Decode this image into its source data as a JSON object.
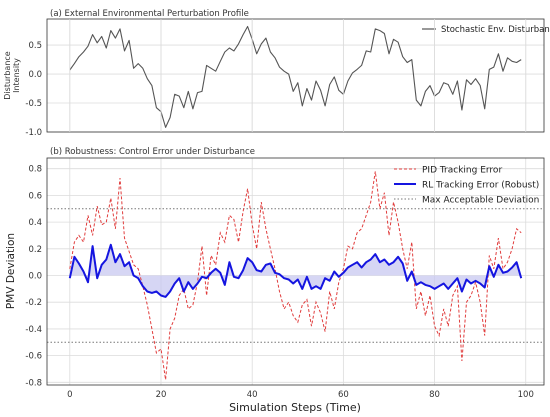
{
  "chart_data": [
    {
      "type": "line",
      "title": "(a) External Environmental Perturbation Profile",
      "ylabel": "Disturbance\nIntensity",
      "ylim": [
        -1.0,
        0.95
      ],
      "yticks": [
        "-1.0",
        "-0.5",
        "0.0",
        "0.5"
      ],
      "ytick_values": [
        -1.0,
        -0.5,
        0.0,
        0.5
      ],
      "xlim": [
        -5,
        104
      ],
      "grid": true,
      "legend_position": "top-right",
      "series": [
        {
          "name": "Stochastic Env. Disturbance",
          "color": "#555555",
          "style": "solid",
          "x": [
            0,
            1,
            2,
            3,
            4,
            5,
            6,
            7,
            8,
            9,
            10,
            11,
            12,
            13,
            14,
            15,
            16,
            17,
            18,
            19,
            20,
            21,
            22,
            23,
            24,
            25,
            26,
            27,
            28,
            29,
            30,
            31,
            32,
            33,
            34,
            35,
            36,
            37,
            38,
            39,
            40,
            41,
            42,
            43,
            44,
            45,
            46,
            47,
            48,
            49,
            50,
            51,
            52,
            53,
            54,
            55,
            56,
            57,
            58,
            59,
            60,
            61,
            62,
            63,
            64,
            65,
            66,
            67,
            68,
            69,
            70,
            71,
            72,
            73,
            74,
            75,
            76,
            77,
            78,
            79,
            80,
            81,
            82,
            83,
            84,
            85,
            86,
            87,
            88,
            89,
            90,
            91,
            92,
            93,
            94,
            95,
            96,
            97,
            98,
            99
          ],
          "values": [
            0.07,
            0.18,
            0.3,
            0.38,
            0.48,
            0.68,
            0.54,
            0.65,
            0.45,
            0.75,
            0.62,
            0.78,
            0.4,
            0.58,
            0.1,
            0.18,
            0.1,
            -0.08,
            -0.2,
            -0.58,
            -0.65,
            -0.92,
            -0.75,
            -0.35,
            -0.38,
            -0.58,
            -0.3,
            -0.6,
            -0.32,
            -0.3,
            0.15,
            0.1,
            0.05,
            0.22,
            0.38,
            0.45,
            0.4,
            0.52,
            0.68,
            0.82,
            0.6,
            0.35,
            0.52,
            0.62,
            0.38,
            0.28,
            0.12,
            0.05,
            0.0,
            -0.3,
            -0.15,
            -0.55,
            -0.25,
            -0.45,
            -0.12,
            -0.28,
            -0.55,
            -0.18,
            -0.05,
            -0.28,
            -0.35,
            -0.12,
            0.02,
            0.08,
            0.15,
            0.4,
            0.38,
            0.78,
            0.75,
            0.7,
            0.35,
            0.6,
            0.55,
            0.3,
            0.2,
            0.25,
            -0.45,
            -0.55,
            -0.3,
            -0.2,
            -0.38,
            -0.32,
            -0.15,
            -0.18,
            -0.35,
            -0.12,
            -0.62,
            -0.1,
            -0.18,
            -0.08,
            -0.2,
            -0.6,
            0.08,
            0.12,
            0.35,
            0.05,
            0.28,
            0.22,
            0.2,
            0.25
          ]
        }
      ]
    },
    {
      "type": "line",
      "title": "(b) Robustness: Control Error under Disturbance",
      "xlabel": "Simulation Steps (Time)",
      "ylabel": "PMV Deviation",
      "ylim": [
        -0.82,
        0.88
      ],
      "yticks": [
        "-0.8",
        "-0.6",
        "-0.4",
        "-0.2",
        "0.0",
        "0.2",
        "0.4",
        "0.6",
        "0.8"
      ],
      "ytick_values": [
        -0.8,
        -0.6,
        -0.4,
        -0.2,
        0.0,
        0.2,
        0.4,
        0.6,
        0.8
      ],
      "xlim": [
        -5,
        104
      ],
      "xticks": [
        "0",
        "20",
        "40",
        "60",
        "80",
        "100"
      ],
      "xtick_values": [
        0,
        20,
        40,
        60,
        80,
        100
      ],
      "grid": true,
      "legend_position": "top-right",
      "thresholds": {
        "name": "Max Acceptable Deviation",
        "values": [
          0.5,
          -0.5
        ],
        "color": "#777777",
        "style": "dotted"
      },
      "fill_color": "#c8c8f0",
      "series": [
        {
          "name": "PID Tracking Error",
          "color": "#e03c3c",
          "style": "dashed",
          "x": [
            0,
            1,
            2,
            3,
            4,
            5,
            6,
            7,
            8,
            9,
            10,
            11,
            12,
            13,
            14,
            15,
            16,
            17,
            18,
            19,
            20,
            21,
            22,
            23,
            24,
            25,
            26,
            27,
            28,
            29,
            30,
            31,
            32,
            33,
            34,
            35,
            36,
            37,
            38,
            39,
            40,
            41,
            42,
            43,
            44,
            45,
            46,
            47,
            48,
            49,
            50,
            51,
            52,
            53,
            54,
            55,
            56,
            57,
            58,
            59,
            60,
            61,
            62,
            63,
            64,
            65,
            66,
            67,
            68,
            69,
            70,
            71,
            72,
            73,
            74,
            75,
            76,
            77,
            78,
            79,
            80,
            81,
            82,
            83,
            84,
            85,
            86,
            87,
            88,
            89,
            90,
            91,
            92,
            93,
            94,
            95,
            96,
            97,
            98,
            99
          ],
          "values": [
            0.05,
            0.25,
            0.3,
            0.25,
            0.45,
            0.3,
            0.52,
            0.38,
            0.4,
            0.58,
            0.35,
            0.73,
            0.28,
            0.18,
            0.08,
            0.05,
            -0.08,
            -0.22,
            -0.4,
            -0.58,
            -0.55,
            -0.78,
            -0.4,
            -0.32,
            -0.15,
            -0.1,
            -0.25,
            -0.22,
            -0.05,
            0.22,
            -0.15,
            0.15,
            0.08,
            0.32,
            0.25,
            0.45,
            0.42,
            0.25,
            0.48,
            0.65,
            0.38,
            0.2,
            0.55,
            0.35,
            0.2,
            0.05,
            -0.12,
            -0.25,
            -0.2,
            -0.3,
            -0.35,
            -0.22,
            -0.18,
            -0.38,
            -0.2,
            -0.28,
            -0.42,
            -0.12,
            -0.25,
            -0.05,
            0.05,
            0.22,
            0.2,
            0.32,
            0.35,
            0.45,
            0.55,
            0.78,
            0.5,
            0.62,
            0.3,
            0.55,
            0.4,
            0.2,
            0.05,
            0.25,
            -0.25,
            -0.12,
            -0.3,
            -0.15,
            -0.38,
            -0.45,
            -0.25,
            -0.38,
            -0.15,
            -0.08,
            -0.64,
            -0.2,
            -0.15,
            -0.05,
            -0.2,
            -0.45,
            0.15,
            0.05,
            0.28,
            0.05,
            0.1,
            0.2,
            0.35,
            0.32
          ]
        },
        {
          "name": "RL Tracking Error (Robust)",
          "color": "#1515e0",
          "style": "solid",
          "x": [
            0,
            1,
            2,
            3,
            4,
            5,
            6,
            7,
            8,
            9,
            10,
            11,
            12,
            13,
            14,
            15,
            16,
            17,
            18,
            19,
            20,
            21,
            22,
            23,
            24,
            25,
            26,
            27,
            28,
            29,
            30,
            31,
            32,
            33,
            34,
            35,
            36,
            37,
            38,
            39,
            40,
            41,
            42,
            43,
            44,
            45,
            46,
            47,
            48,
            49,
            50,
            51,
            52,
            53,
            54,
            55,
            56,
            57,
            58,
            59,
            60,
            61,
            62,
            63,
            64,
            65,
            66,
            67,
            68,
            69,
            70,
            71,
            72,
            73,
            74,
            75,
            76,
            77,
            78,
            79,
            80,
            81,
            82,
            83,
            84,
            85,
            86,
            87,
            88,
            89,
            90,
            91,
            92,
            93,
            94,
            95,
            96,
            97,
            98,
            99
          ],
          "values": [
            -0.02,
            0.14,
            0.09,
            0.03,
            -0.05,
            0.22,
            -0.02,
            0.08,
            0.12,
            0.23,
            0.1,
            0.16,
            0.07,
            0.1,
            0.0,
            -0.02,
            -0.08,
            -0.12,
            -0.13,
            -0.12,
            -0.15,
            -0.16,
            -0.12,
            -0.06,
            -0.02,
            -0.12,
            -0.05,
            -0.1,
            -0.06,
            -0.01,
            -0.02,
            0.02,
            0.05,
            0.02,
            -0.07,
            0.1,
            -0.01,
            -0.02,
            0.04,
            0.13,
            0.1,
            0.04,
            0.03,
            0.08,
            0.09,
            0.02,
            0.01,
            -0.02,
            -0.03,
            -0.06,
            -0.03,
            -0.1,
            -0.01,
            -0.1,
            -0.08,
            -0.1,
            -0.02,
            -0.04,
            0.03,
            -0.01,
            0.02,
            0.06,
            0.08,
            0.1,
            0.06,
            0.1,
            0.12,
            0.16,
            0.1,
            0.12,
            0.08,
            0.1,
            0.14,
            0.09,
            -0.04,
            0.03,
            -0.07,
            -0.05,
            -0.07,
            -0.08,
            -0.1,
            -0.08,
            -0.06,
            -0.1,
            -0.06,
            -0.02,
            -0.12,
            -0.03,
            -0.06,
            -0.04,
            -0.06,
            -0.09,
            0.07,
            -0.01,
            0.08,
            0.02,
            0.03,
            0.06,
            0.1,
            -0.02
          ]
        }
      ]
    }
  ]
}
